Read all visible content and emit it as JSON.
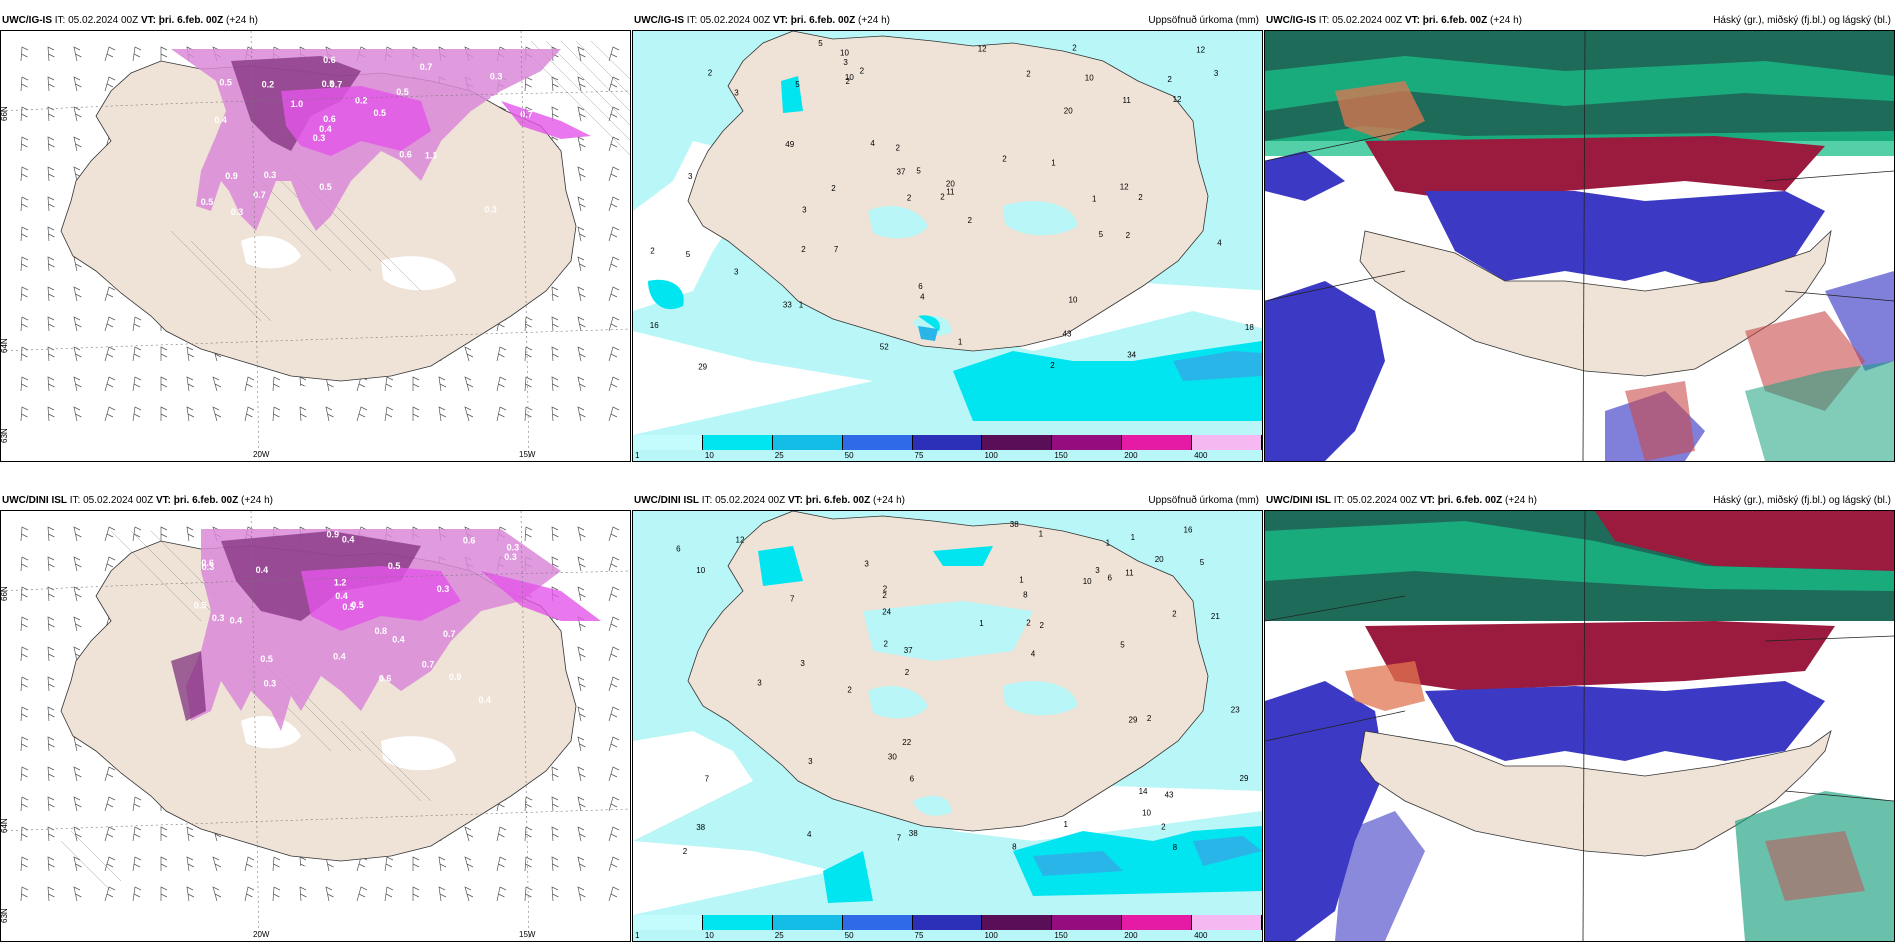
{
  "panels": [
    {
      "model": "UWC/IG-IS",
      "it_label": "IT:",
      "it": "05.02.2024 00Z",
      "vt_label": "VT:",
      "vt": "þri. 6.feb. 00Z",
      "lead": "(+24 h)",
      "right_title": "",
      "lat_labels": [
        "66N",
        "64N",
        "63N"
      ],
      "lon_labels": [
        "20W",
        "15W"
      ],
      "values": [
        "0.3",
        "0.4",
        "0.3",
        "0.3",
        "0.5",
        "0.3",
        "0.5",
        "0.2",
        "0.9",
        "1.0",
        "0.5",
        "0.7",
        "0.7",
        "0.5",
        "1.1",
        "0.5",
        "0.6",
        "0.7",
        "0.6",
        "0.3",
        "0.4",
        "0.5",
        "0.6",
        "0.2",
        "0.7",
        "0.3"
      ]
    },
    {
      "model": "UWC/IG-IS",
      "it_label": "IT:",
      "it": "05.02.2024 00Z",
      "vt_label": "VT:",
      "vt": "þri. 6.feb. 00Z",
      "lead": "(+24 h)",
      "right_title": "Uppsöfnuð úrkoma (mm)",
      "values": [
        "2",
        "2",
        "2",
        "2",
        "2",
        "12",
        "16",
        "18",
        "5",
        "12",
        "7",
        "5",
        "4",
        "4",
        "3",
        "2",
        "5",
        "3",
        "3",
        "2",
        "3",
        "2",
        "3",
        "2",
        "10",
        "2",
        "2",
        "1",
        "1",
        "1",
        "1",
        "2",
        "2",
        "2",
        "20",
        "33",
        "20",
        "10",
        "4",
        "3",
        "5",
        "6",
        "10",
        "11",
        "12",
        "12",
        "10",
        "29",
        "34",
        "49",
        "52",
        "43",
        "37",
        "11",
        "2",
        "2",
        "2",
        "5"
      ],
      "colorbar_ticks": [
        "1",
        "10",
        "25",
        "50",
        "75",
        "100",
        "150",
        "200",
        "400"
      ]
    },
    {
      "model": "UWC/IG-IS",
      "it_label": "IT:",
      "it": "05.02.2024 00Z",
      "vt_label": "VT:",
      "vt": "þri. 6.feb. 00Z",
      "lead": "(+24 h)",
      "right_title": "Háský (gr.), miðský (fj.bl.) og lágský (bl.)"
    },
    {
      "model": "UWC/DINI ISL",
      "it_label": "IT:",
      "it": "05.02.2024 00Z",
      "vt_label": "VT:",
      "vt": "þri. 6.feb. 00Z",
      "lead": "(+24 h)",
      "right_title": "",
      "lat_labels": [
        "66N",
        "64N",
        "63N"
      ],
      "lon_labels": [
        "20W",
        "15W"
      ],
      "values": [
        "0.5",
        "0.4",
        "0.3",
        "0.3",
        "0.6",
        "0.4",
        "0.4",
        "0.5",
        "1.2",
        "0.6",
        "0.5",
        "0.7",
        "0.9",
        "0.3",
        "0.4",
        "0.5",
        "0.6",
        "0.3",
        "0.8",
        "0.4",
        "0.7",
        "0.9",
        "0.3",
        "0.4",
        "0.3",
        "0.5",
        "0.4"
      ]
    },
    {
      "model": "UWC/DINI ISL",
      "it_label": "IT:",
      "it": "05.02.2024 00Z",
      "vt_label": "VT:",
      "vt": "þri. 6.feb. 00Z",
      "lead": "(+24 h)",
      "right_title": "Uppsöfnuð úrkoma (mm)",
      "values": [
        "8",
        "24",
        "21",
        "16",
        "38",
        "8",
        "10",
        "7",
        "10",
        "6",
        "6",
        "4",
        "3",
        "2",
        "2",
        "2",
        "7",
        "2",
        "3",
        "2",
        "3",
        "3",
        "1",
        "1",
        "2",
        "1",
        "1",
        "20",
        "3",
        "5",
        "6",
        "2",
        "2",
        "11",
        "1",
        "1",
        "22",
        "2",
        "7",
        "4",
        "23",
        "12",
        "2",
        "8",
        "10",
        "5",
        "38",
        "38",
        "30",
        "29",
        "14",
        "37",
        "43",
        "29",
        "2"
      ],
      "colorbar_ticks": [
        "1",
        "10",
        "25",
        "50",
        "75",
        "100",
        "150",
        "200",
        "400"
      ]
    },
    {
      "model": "UWC/DINI ISL",
      "it_label": "IT:",
      "it": "05.02.2024 00Z",
      "vt_label": "VT:",
      "vt": "þri. 6.feb. 00Z",
      "lead": "(+24 h)",
      "right_title": "Háský (gr.), miðský (fj.bl.) og lágský (bl.)"
    }
  ],
  "colors": {
    "land": "#efe2d6",
    "precip_light": "#b8f6f8",
    "precip_mid": "#00e5f0",
    "precip_strong": "#2ab5e8",
    "wind_violet": "#c75cd8",
    "wind_dark": "#7a2a78",
    "cloud_high": "#1e6b5a",
    "cloud_mid": "#9b1b3e",
    "cloud_low": "#3c3ac4"
  },
  "colorbar_colors": [
    "#c4fbfd",
    "#00e5f0",
    "#13bde6",
    "#2f6be8",
    "#2c2fb8",
    "#5a0e58",
    "#950c7e",
    "#e51aa5",
    "#f5b8f0"
  ]
}
